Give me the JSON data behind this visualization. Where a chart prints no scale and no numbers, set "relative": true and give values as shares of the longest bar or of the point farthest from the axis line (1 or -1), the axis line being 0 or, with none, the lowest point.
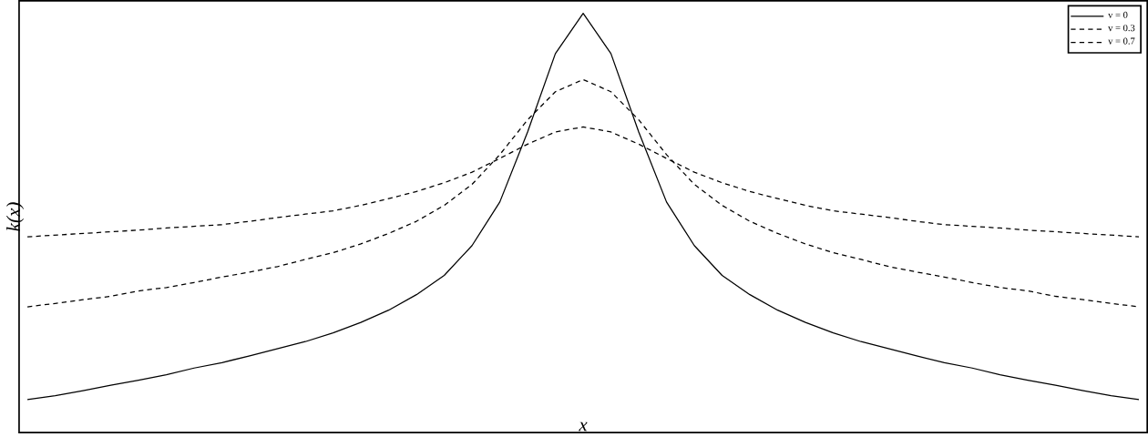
{
  "chart_data": {
    "type": "line",
    "relative": true,
    "xlabel": "x",
    "ylabel": "k(x)",
    "legend": "top right",
    "categories": [
      null,
      null,
      null,
      null,
      null,
      null,
      null,
      null,
      null,
      null,
      null,
      null,
      null,
      null,
      null,
      null,
      null,
      null,
      null,
      null,
      null,
      null,
      null,
      null,
      null,
      null,
      null,
      null,
      null,
      null,
      null,
      null,
      null,
      null,
      null,
      null,
      null,
      null,
      null,
      null,
      null
    ],
    "series": [
      {
        "name": "v = 0",
        "color": "#000000",
        "line_style": "solid",
        "values": [
          0.079,
          0.088,
          0.1,
          0.113,
          0.125,
          0.138,
          0.154,
          0.167,
          0.183,
          0.2,
          0.217,
          0.238,
          0.263,
          0.292,
          0.329,
          0.375,
          0.446,
          0.55,
          0.717,
          0.904,
          1.0,
          0.904,
          0.717,
          0.55,
          0.446,
          0.375,
          0.329,
          0.292,
          0.263,
          0.238,
          0.217,
          0.2,
          0.183,
          0.167,
          0.154,
          0.138,
          0.125,
          0.113,
          0.1,
          0.088,
          0.079
        ]
      },
      {
        "name": "v = 0.3",
        "color": "#000000",
        "line_style": "dashed",
        "values": [
          0.3,
          0.308,
          0.317,
          0.325,
          0.338,
          0.346,
          0.358,
          0.371,
          0.383,
          0.396,
          0.413,
          0.429,
          0.45,
          0.475,
          0.504,
          0.542,
          0.592,
          0.663,
          0.746,
          0.813,
          0.842,
          0.813,
          0.746,
          0.663,
          0.592,
          0.542,
          0.504,
          0.475,
          0.45,
          0.429,
          0.413,
          0.396,
          0.383,
          0.371,
          0.358,
          0.346,
          0.338,
          0.325,
          0.317,
          0.308,
          0.3
        ]
      },
      {
        "name": "v = 0.7",
        "color": "#000000",
        "line_style": "dashed",
        "values": [
          0.467,
          0.471,
          0.475,
          0.479,
          0.483,
          0.488,
          0.492,
          0.496,
          0.504,
          0.513,
          0.521,
          0.529,
          0.542,
          0.558,
          0.575,
          0.596,
          0.621,
          0.654,
          0.688,
          0.717,
          0.729,
          0.717,
          0.688,
          0.654,
          0.621,
          0.596,
          0.575,
          0.558,
          0.542,
          0.529,
          0.521,
          0.513,
          0.504,
          0.496,
          0.492,
          0.488,
          0.483,
          0.479,
          0.475,
          0.471,
          0.467
        ]
      }
    ]
  }
}
